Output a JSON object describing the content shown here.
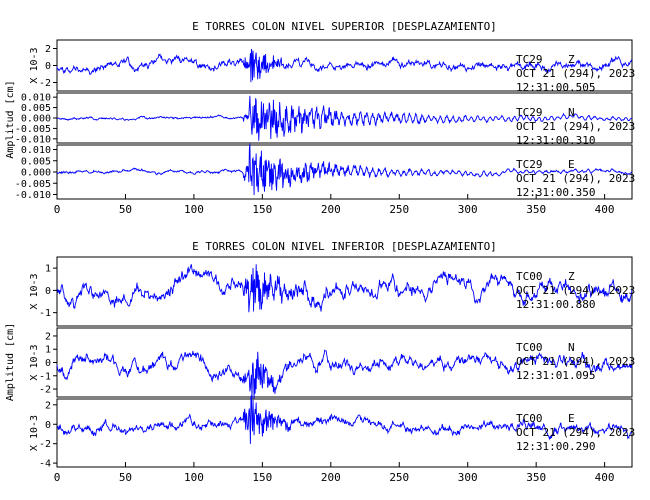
{
  "chart_data": [
    {
      "type": "line",
      "title": "E TORRES COLON NIVEL SUPERIOR [DESPLAZAMIENTO]",
      "ylabel": "Amplitud [cm]",
      "xlim": [
        0,
        420
      ],
      "x_ticks": [
        "0",
        "50",
        "100",
        "150",
        "200",
        "250",
        "300",
        "350",
        "400"
      ],
      "line_color": "#0000ff",
      "panels": [
        {
          "station": "TC29",
          "component": "Z",
          "date": "OCT 21 (294), 2023",
          "time": "12:31:00.505",
          "scale_label": "X 10-3",
          "ylim": [
            -3,
            3
          ],
          "y_ticks": [
            "2",
            "0",
            "-2"
          ],
          "trace": {
            "seed": 11,
            "noise": 0.5,
            "drift": 0.4,
            "event_t": 140,
            "event_amp": 2.6,
            "decay": 14,
            "wave_amp": 0.5,
            "wave_period": 6
          }
        },
        {
          "station": "TC29",
          "component": "N",
          "date": "OCT 21 (294), 2023",
          "time": "12:31:00.310",
          "scale_label": "",
          "ylim": [
            -0.012,
            0.012
          ],
          "y_ticks": [
            "0.010",
            "0.005",
            "0.000",
            "-0.005",
            "-0.010"
          ],
          "trace": {
            "seed": 23,
            "noise": 0.0006,
            "drift": 0.0005,
            "event_t": 140,
            "event_amp": 0.011,
            "decay": 45,
            "wave_amp": 0.004,
            "wave_period": 4.5
          }
        },
        {
          "station": "TC29",
          "component": "E",
          "date": "OCT 21 (294), 2023",
          "time": "12:31:00.350",
          "scale_label": "",
          "ylim": [
            -0.012,
            0.012
          ],
          "y_ticks": [
            "0.010",
            "0.005",
            "0.000",
            "-0.005",
            "-0.010"
          ],
          "trace": {
            "seed": 37,
            "noise": 0.0007,
            "drift": 0.0008,
            "event_t": 140,
            "event_amp": 0.011,
            "decay": 35,
            "wave_amp": 0.003,
            "wave_period": 4.5
          }
        }
      ]
    },
    {
      "type": "line",
      "title": "E TORRES COLON NIVEL INFERIOR [DESPLAZAMIENTO]",
      "ylabel": "Amplitud [cm]",
      "xlim": [
        0,
        420
      ],
      "x_ticks": [
        "0",
        "50",
        "100",
        "150",
        "200",
        "250",
        "300",
        "350",
        "400"
      ],
      "line_color": "#0000ff",
      "panels": [
        {
          "station": "TC00",
          "component": "Z",
          "date": "OCT 21 (294), 2023",
          "time": "12:31:00.880",
          "scale_label": "X 10-3",
          "ylim": [
            -1.6,
            1.5
          ],
          "y_ticks": [
            "1",
            "0",
            "-1"
          ],
          "trace": {
            "seed": 51,
            "noise": 0.35,
            "drift": 0.45,
            "event_t": 140,
            "event_amp": 1.2,
            "decay": 20,
            "wave_amp": 0.3,
            "wave_period": 5
          }
        },
        {
          "station": "TC00",
          "component": "N",
          "date": "OCT 21 (294), 2023",
          "time": "12:31:01.095",
          "scale_label": "X 10-3",
          "ylim": [
            -2.6,
            2.6
          ],
          "y_ticks": [
            "2",
            "1",
            "0",
            "-1",
            "-2"
          ],
          "trace": {
            "seed": 67,
            "noise": 0.45,
            "drift": 0.6,
            "event_t": 140,
            "event_amp": 2.0,
            "decay": 14,
            "wave_amp": 0.35,
            "wave_period": 5
          }
        },
        {
          "station": "TC00",
          "component": "E",
          "date": "OCT 21 (294), 2023",
          "time": "12:31:00.290",
          "scale_label": "X 10-3",
          "ylim": [
            -4.4,
            2.6
          ],
          "y_ticks": [
            "2",
            "0",
            "-2",
            "-4"
          ],
          "trace": {
            "seed": 79,
            "noise": 0.5,
            "drift": 0.7,
            "event_t": 140,
            "event_amp": 3.2,
            "decay": 12,
            "wave_amp": 0.35,
            "wave_period": 5
          }
        }
      ]
    }
  ]
}
